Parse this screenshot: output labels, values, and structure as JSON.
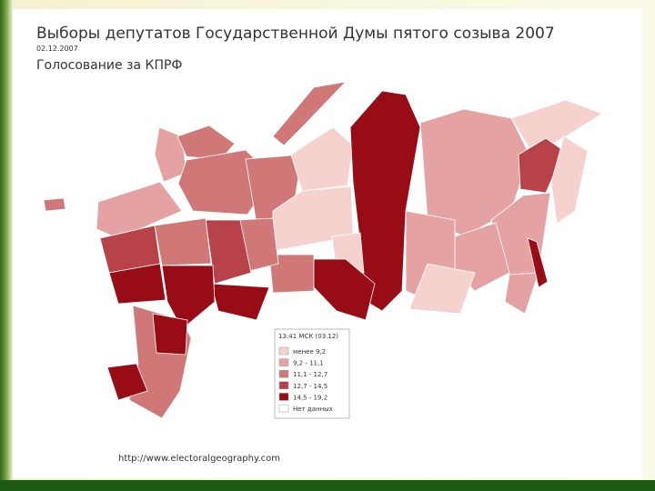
{
  "header": {
    "title": "Выборы депутатов Государственной Думы пятого созыва 2007",
    "date": "02.12.2007",
    "subtitle": "Голосование за КПРФ"
  },
  "legend": {
    "title": "13:41 МСК (03.12)",
    "items": [
      {
        "label": "менее 9,2",
        "color": "#f6d2cf"
      },
      {
        "label": "9,2 - 11,1",
        "color": "#e5a2a2"
      },
      {
        "label": "11,1 - 12,7",
        "color": "#d07878"
      },
      {
        "label": "12,7 - 14,5",
        "color": "#b8424a"
      },
      {
        "label": "14,5 - 19,2",
        "color": "#980c16"
      },
      {
        "label": "Нет данных",
        "color": "#ffffff"
      }
    ]
  },
  "source": "http://www.electoralgeography.com"
}
